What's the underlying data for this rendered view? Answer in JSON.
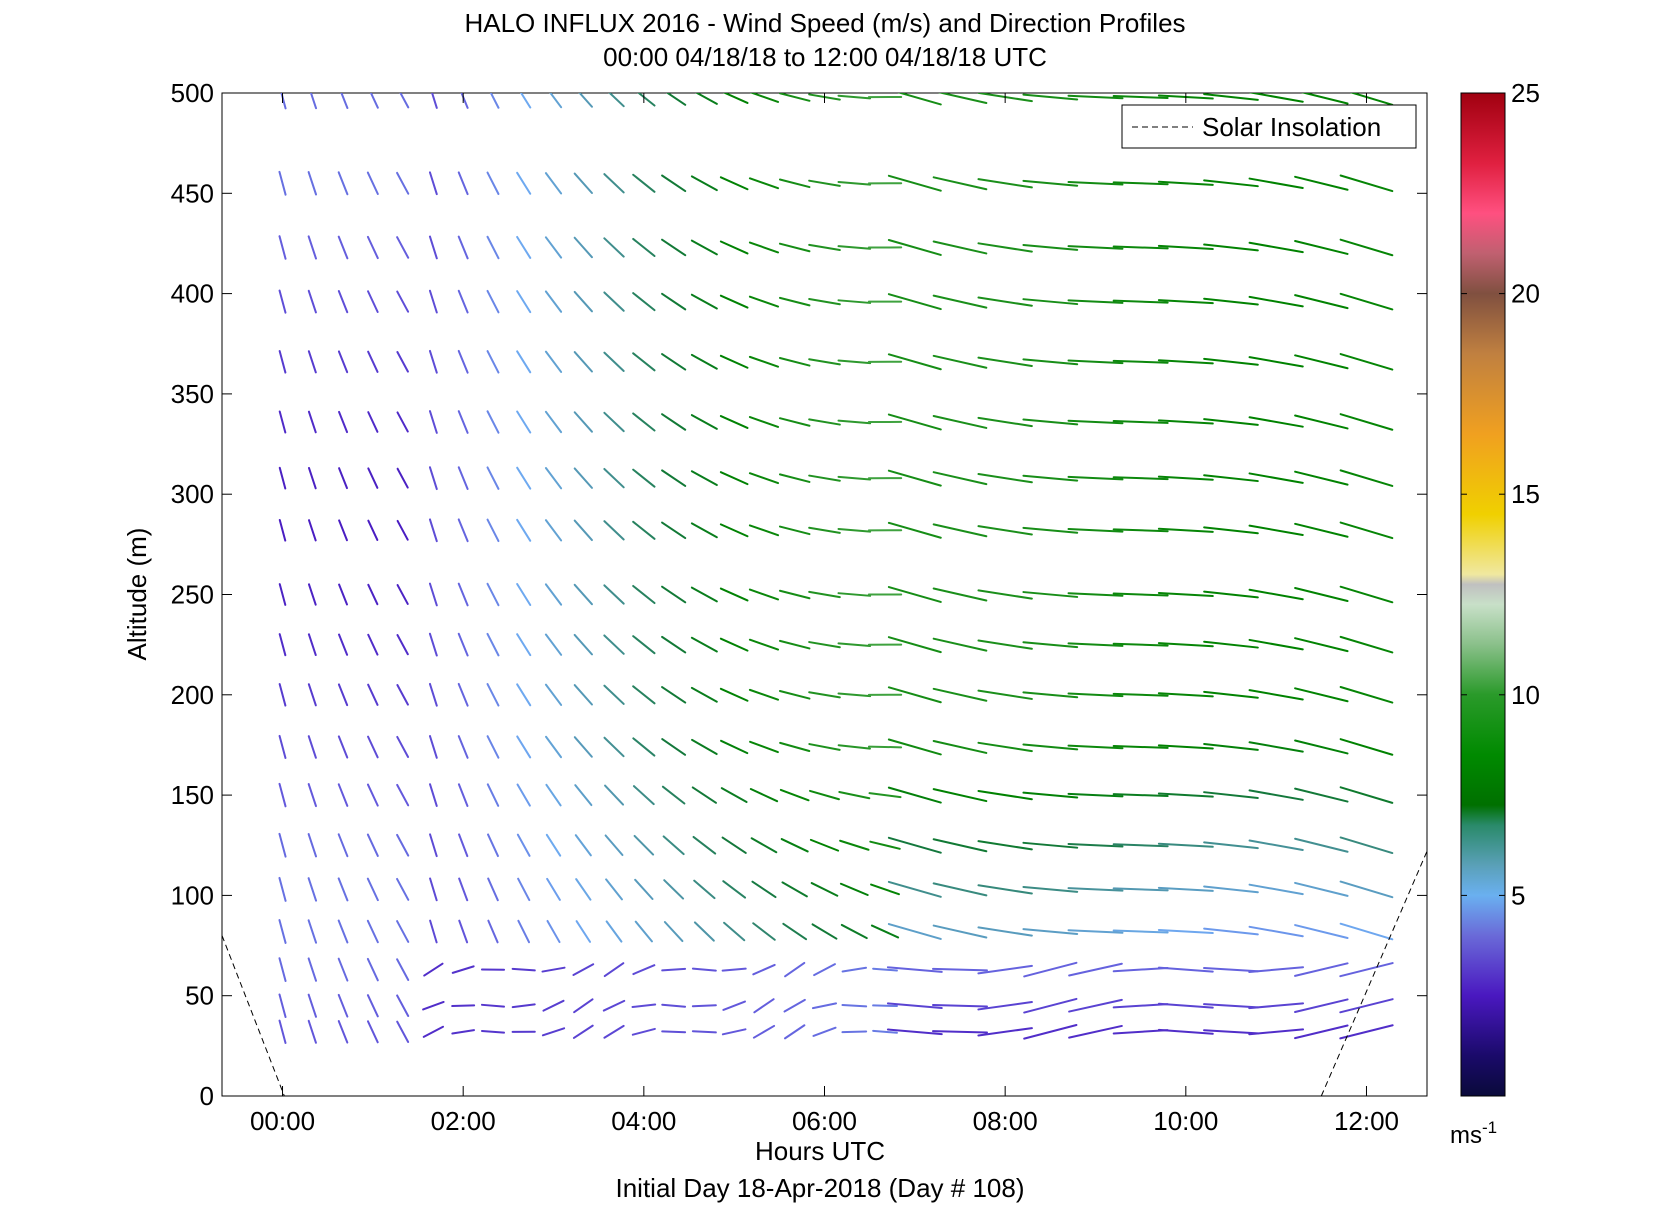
{
  "chart_data": {
    "type": "quiver",
    "title_line1": "HALO INFLUX 2016 - Wind Speed (m/s) and Direction Profiles",
    "title_line2": "00:00 04/18/18 to 12:00 04/18/18  UTC",
    "xlabel": "Hours UTC",
    "xlabel2": "Initial Day 18-Apr-2018 (Day # 108)",
    "ylabel": "Altitude (m)",
    "xlim": [
      -0.67,
      12.67
    ],
    "ylim": [
      0,
      500
    ],
    "x_ticks": [
      0,
      2,
      4,
      6,
      8,
      10,
      12
    ],
    "x_tick_labels": [
      "00:00",
      "02:00",
      "04:00",
      "06:00",
      "08:00",
      "10:00",
      "12:00"
    ],
    "y_ticks": [
      0,
      50,
      100,
      150,
      200,
      250,
      300,
      350,
      400,
      450,
      500
    ],
    "y_tick_labels": [
      "0",
      "50",
      "100",
      "150",
      "200",
      "250",
      "300",
      "350",
      "400",
      "450",
      "500"
    ],
    "colorbar": {
      "range": [
        0,
        25
      ],
      "ticks": [
        5,
        10,
        15,
        20,
        25
      ],
      "tick_labels": [
        "5",
        "10",
        "15",
        "20",
        "25"
      ],
      "unit": "ms",
      "unit_exponent": "-1"
    },
    "legend": {
      "entry": "Solar Insolation",
      "location": "top-right",
      "line_style": "dashed",
      "color": "#000000"
    },
    "solar_insolation_lines": [
      {
        "x": [
          -0.67,
          0.02
        ],
        "y": [
          80,
          0
        ]
      },
      {
        "x": [
          11.5,
          12.67
        ],
        "y": [
          0,
          122
        ]
      }
    ],
    "altitudes": [
      32,
      45,
      63,
      82,
      103,
      125,
      150,
      174,
      200,
      225,
      250,
      282,
      308,
      336,
      366,
      396,
      423,
      455,
      498
    ],
    "time_columns_hours_early": [
      0.0,
      0.33,
      0.67,
      1.0,
      1.33,
      1.67,
      2.0,
      2.33,
      2.67,
      3.0,
      3.33,
      3.67,
      4.0,
      4.33,
      4.67,
      5.0,
      5.33,
      5.67,
      6.0,
      6.33,
      6.67,
      7.0
    ],
    "time_columns_hours_late": [
      7.0,
      7.5,
      8.0,
      8.5,
      9.0,
      9.5,
      10.0,
      10.5,
      11.0,
      11.5,
      12.0
    ],
    "wind_summary": "Early hours: weak northwesterly winds (blue/purple, 2-5 m/s); after 07:00 winds strengthen to 6-10 m/s from the west above 150 m (green), while lowest levels remain weak (purple)."
  }
}
